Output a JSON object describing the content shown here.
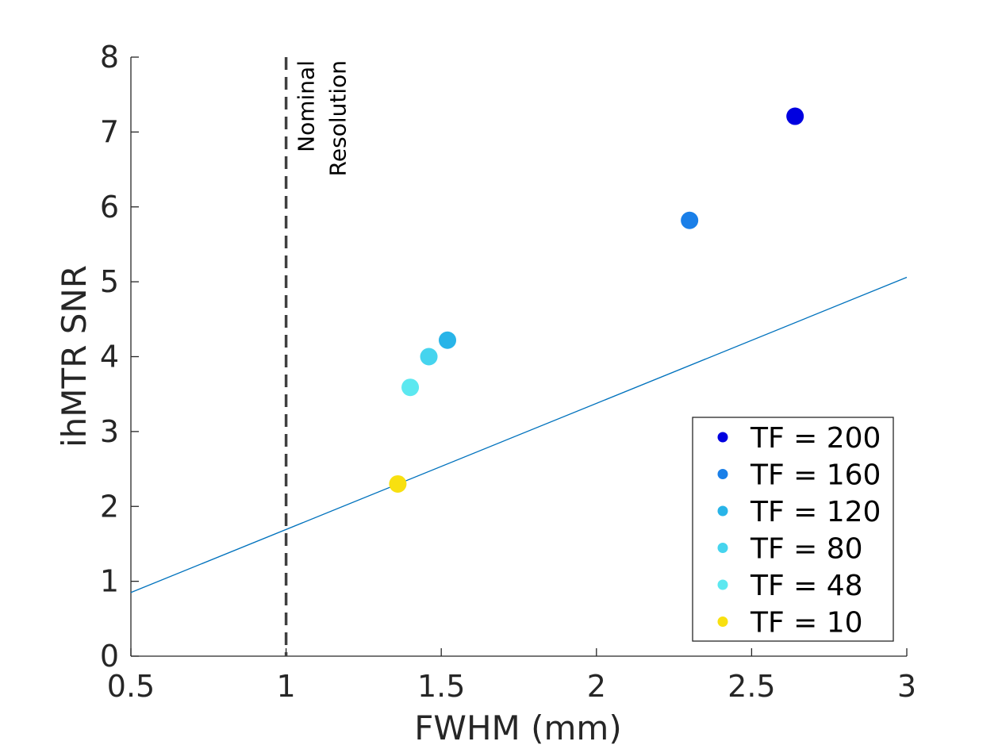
{
  "chart_data": {
    "type": "scatter",
    "title": "",
    "xlabel": "FWHM (mm)",
    "ylabel": "ihMTR SNR",
    "xlim": [
      0.5,
      3
    ],
    "ylim": [
      0,
      8
    ],
    "xticks": [
      "0.5",
      "1",
      "1.5",
      "2",
      "2.5",
      "3"
    ],
    "xtick_values": [
      0.5,
      1,
      1.5,
      2,
      2.5,
      3
    ],
    "yticks": [
      "0",
      "1",
      "2",
      "3",
      "4",
      "5",
      "6",
      "7",
      "8"
    ],
    "ytick_values": [
      0,
      1,
      2,
      3,
      4,
      5,
      6,
      7,
      8
    ],
    "grid": false,
    "legend_position": "bottom-right",
    "series": [
      {
        "name": "TF = 200",
        "x": 2.64,
        "y": 7.21,
        "color": "#0000e0"
      },
      {
        "name": "TF = 160",
        "x": 2.3,
        "y": 5.82,
        "color": "#1a7fe8"
      },
      {
        "name": "TF = 120",
        "x": 1.52,
        "y": 4.22,
        "color": "#28b4e8"
      },
      {
        "name": "TF = 80",
        "x": 1.46,
        "y": 4.0,
        "color": "#46d4ee"
      },
      {
        "name": "TF = 48",
        "x": 1.4,
        "y": 3.59,
        "color": "#5ce8f0"
      },
      {
        "name": "TF = 10",
        "x": 1.36,
        "y": 2.3,
        "color": "#f8e010"
      }
    ],
    "reference_line": {
      "x": [
        0.5,
        3
      ],
      "y": [
        0.85,
        5.06
      ],
      "color": "#0072bd"
    },
    "vertical_line": {
      "x": 1,
      "style": "dashed",
      "color": "#404040"
    },
    "annotation": {
      "lines": [
        "Nominal",
        "Resolution"
      ]
    }
  }
}
